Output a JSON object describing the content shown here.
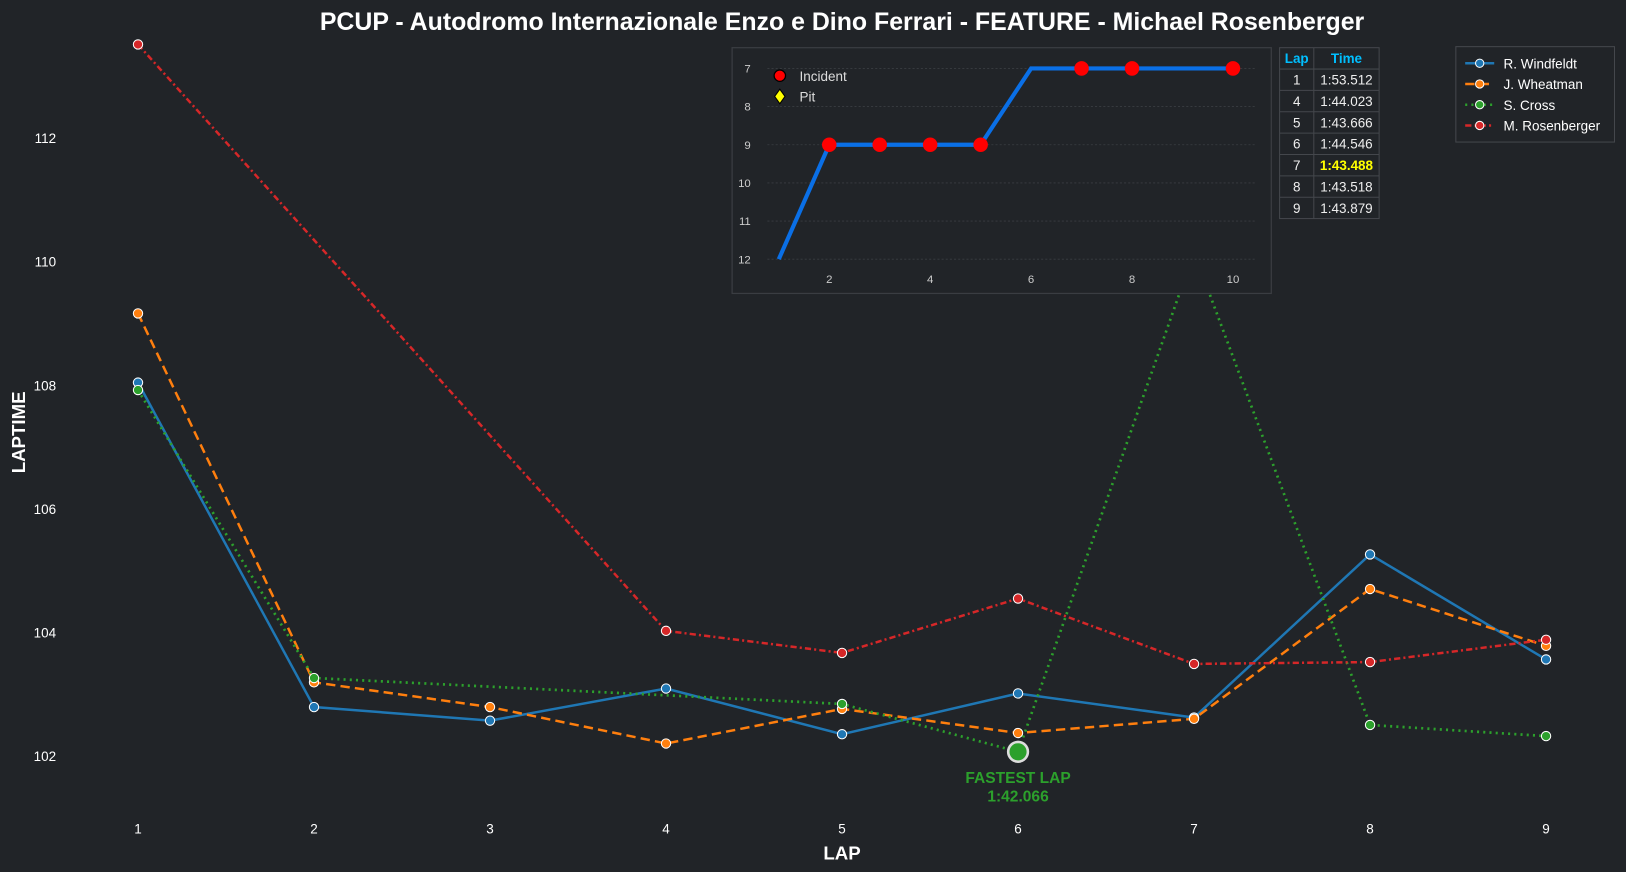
{
  "chart_data": [
    {
      "type": "line",
      "title": "PCUP - Autodromo Internazionale Enzo e Dino Ferrari - FEATURE - Michael Rosenberger",
      "xlabel": "LAP",
      "ylabel": "LAPTIME",
      "x": [
        1,
        2,
        3,
        4,
        5,
        6,
        7,
        8,
        9
      ],
      "xticks": [
        "1",
        "2",
        "3",
        "4",
        "5",
        "6",
        "7",
        "8",
        "9"
      ],
      "yticks": [
        102,
        104,
        106,
        108,
        110,
        112
      ],
      "ylim": [
        101.05,
        113.65
      ],
      "xlim": [
        0.6,
        9.4
      ],
      "grid": false,
      "legend_placement": "top-right",
      "series": [
        {
          "name": "R. Windfeldt",
          "color": "#1f77b4",
          "dash": "solid",
          "values": [
            108.04,
            102.79,
            102.57,
            103.09,
            102.35,
            103.01,
            102.62,
            105.26,
            103.56
          ]
        },
        {
          "name": "J. Wheatman",
          "color": "#ff7f0e",
          "dash": "dashed",
          "values": [
            109.16,
            103.19,
            102.79,
            102.2,
            102.76,
            102.37,
            102.6,
            104.7,
            103.78
          ]
        },
        {
          "name": "S. Cross",
          "color": "#2ca02c",
          "dash": "dotted",
          "values": [
            107.92,
            103.26,
            null,
            null,
            102.84,
            102.066,
            110.15,
            102.5,
            102.32
          ]
        },
        {
          "name": "M. Rosenberger",
          "color": "#d62728",
          "dash": "dashdot",
          "values": [
            113.512,
            null,
            null,
            104.023,
            103.666,
            104.546,
            103.488,
            103.518,
            103.879
          ]
        }
      ],
      "annotation": {
        "label": "FASTEST LAP",
        "time": "1:42.066",
        "lap": 6,
        "value": 102.066,
        "color": "#2ca02c"
      }
    },
    {
      "type": "line",
      "title": "",
      "x": [
        1,
        2,
        3,
        4,
        5,
        6,
        7,
        8,
        9,
        10
      ],
      "values": [
        12,
        9,
        9,
        9,
        9,
        7,
        7,
        7,
        7,
        7
      ],
      "xticks": [
        "2",
        "4",
        "6",
        "8",
        "10"
      ],
      "yticks": [
        "7",
        "8",
        "9",
        "10",
        "11",
        "12"
      ],
      "y_inverted": true,
      "ylim": [
        12,
        7
      ],
      "color": "#0a6fe6",
      "incident_laps": [
        2,
        3,
        4,
        5,
        7,
        8,
        10
      ],
      "pit_laps": [],
      "legend": [
        {
          "label": "Incident",
          "marker": "circle",
          "color": "#ff0000"
        },
        {
          "label": "Pit",
          "marker": "diamond",
          "color": "#ffff00"
        }
      ]
    }
  ],
  "lap_table": {
    "headers": [
      "Lap",
      "Time"
    ],
    "header_color": "#00bfff",
    "highlight_color": "#ffff00",
    "rows": [
      {
        "lap": "1",
        "time": "1:53.512",
        "best": false
      },
      {
        "lap": "4",
        "time": "1:44.023",
        "best": false
      },
      {
        "lap": "5",
        "time": "1:43.666",
        "best": false
      },
      {
        "lap": "6",
        "time": "1:44.546",
        "best": false
      },
      {
        "lap": "7",
        "time": "1:43.488",
        "best": true
      },
      {
        "lap": "8",
        "time": "1:43.518",
        "best": false
      },
      {
        "lap": "9",
        "time": "1:43.879",
        "best": false
      }
    ]
  }
}
